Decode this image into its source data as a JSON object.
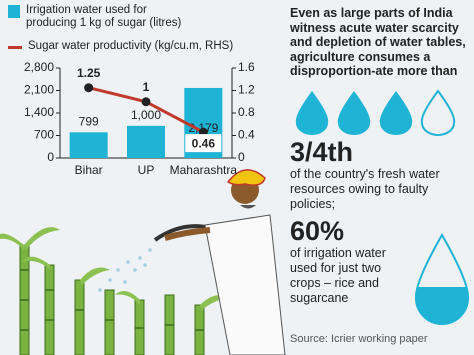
{
  "chart_data": {
    "type": "bar",
    "categories": [
      "Bihar",
      "UP",
      "Maharashtra"
    ],
    "series": [
      {
        "name": "Irrigation water used for producing 1 kg of sugar (litres)",
        "type": "bar",
        "color": "#1fb3d6",
        "values": [
          799,
          1000,
          2179
        ],
        "value_labels": [
          "799",
          "1,000",
          "2,179"
        ]
      },
      {
        "name": "Sugar water productivity (kg/cu.m, RHS)",
        "type": "line",
        "axis": "y2",
        "color": "#c0392b",
        "values": [
          1.25,
          1,
          0.46
        ]
      }
    ],
    "ylim": [
      0,
      2800
    ],
    "yticks": [
      0,
      700,
      {
        "value": 1400,
        "label": "1,400"
      },
      {
        "value": 2100,
        "label": "2,100"
      },
      {
        "value": 2800,
        "label": "2,800"
      }
    ],
    "y2lim": [
      0,
      1.6
    ],
    "y2ticks": [
      0,
      0.4,
      0.8,
      1.2,
      1.6
    ]
  },
  "sidebar": {
    "intro": "Even as large parts of India witness acute water scarcity and depletion of water tables, agriculture consumes a disproportion-ate more than",
    "stat1": "3/4th",
    "text1": "of the country's fresh water resources owing to faulty policies;",
    "stat2": "60%",
    "text2": "of irrigation water used for just two crops – rice and sugarcane",
    "source": "Source: Icrier working paper"
  }
}
